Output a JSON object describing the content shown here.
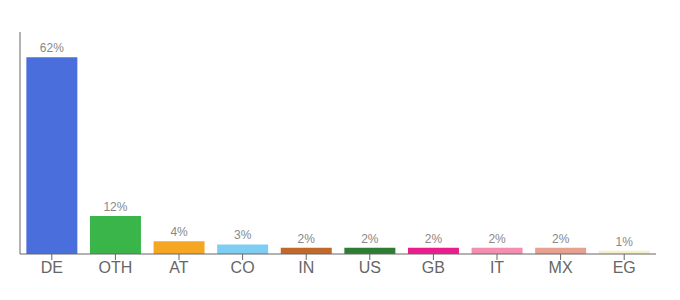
{
  "chart_data": {
    "type": "bar",
    "categories": [
      "DE",
      "OTH",
      "AT",
      "CO",
      "IN",
      "US",
      "GB",
      "IT",
      "MX",
      "EG"
    ],
    "values": [
      62,
      12,
      4,
      3,
      2,
      2,
      2,
      2,
      2,
      1
    ],
    "value_labels": [
      "62%",
      "12%",
      "4%",
      "3%",
      "2%",
      "2%",
      "2%",
      "2%",
      "2%",
      "1%"
    ],
    "colors": [
      "#4a6edb",
      "#3ab54a",
      "#f5a623",
      "#7ecef4",
      "#c0692a",
      "#2e7d32",
      "#e91e8c",
      "#f48fb1",
      "#e8a090",
      "#f5f0c8"
    ],
    "ylim": [
      0,
      70
    ],
    "grid": false,
    "data_labels": true,
    "tick_labels": "x"
  }
}
